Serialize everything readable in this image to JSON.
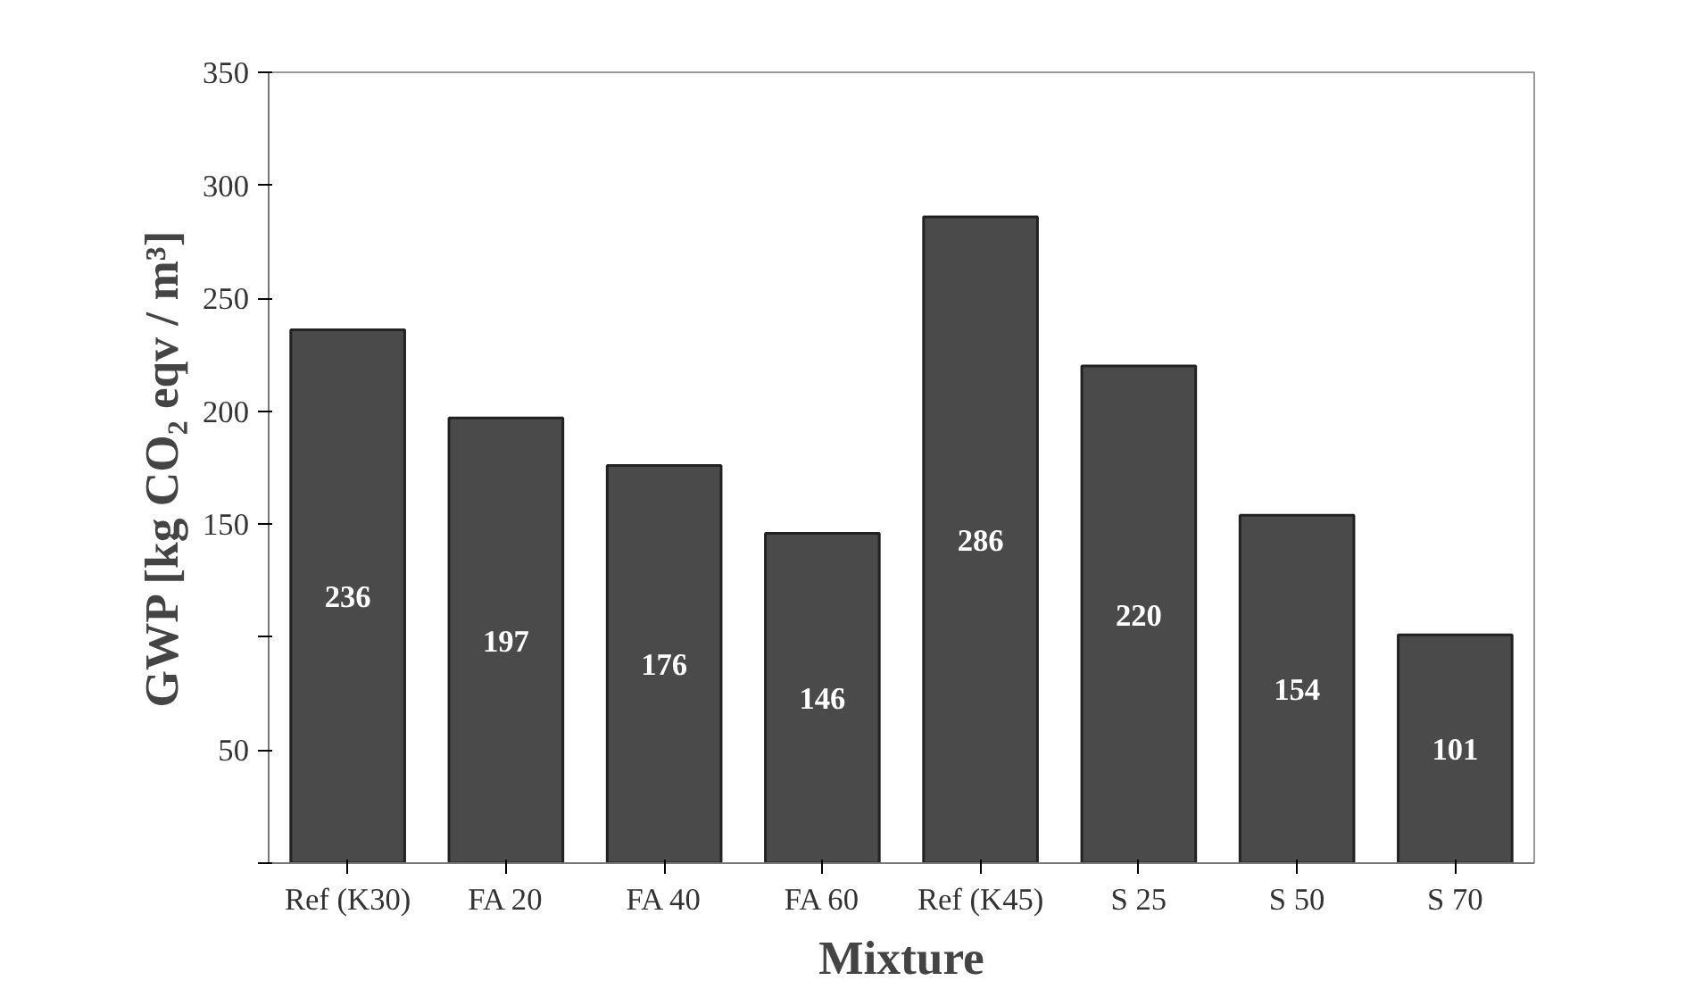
{
  "chart_data": {
    "type": "bar",
    "xlabel": "Mixture",
    "ylabel": "GWP [kg CO₂ eqv / m³]",
    "categories": [
      "Ref (K30)",
      "FA 20",
      "FA 40",
      "FA 60",
      "Ref (K45)",
      "S 25",
      "S 50",
      "S 70"
    ],
    "values": [
      236,
      197,
      176,
      146,
      286,
      220,
      154,
      101
    ],
    "color": "#4a4a4a",
    "data_labels": true,
    "grid": false,
    "ylim": [
      0,
      350
    ],
    "yticks": [
      {
        "value": 0,
        "label": null
      },
      50,
      {
        "value": 100,
        "label": null
      },
      150,
      200,
      250,
      300,
      350
    ]
  }
}
